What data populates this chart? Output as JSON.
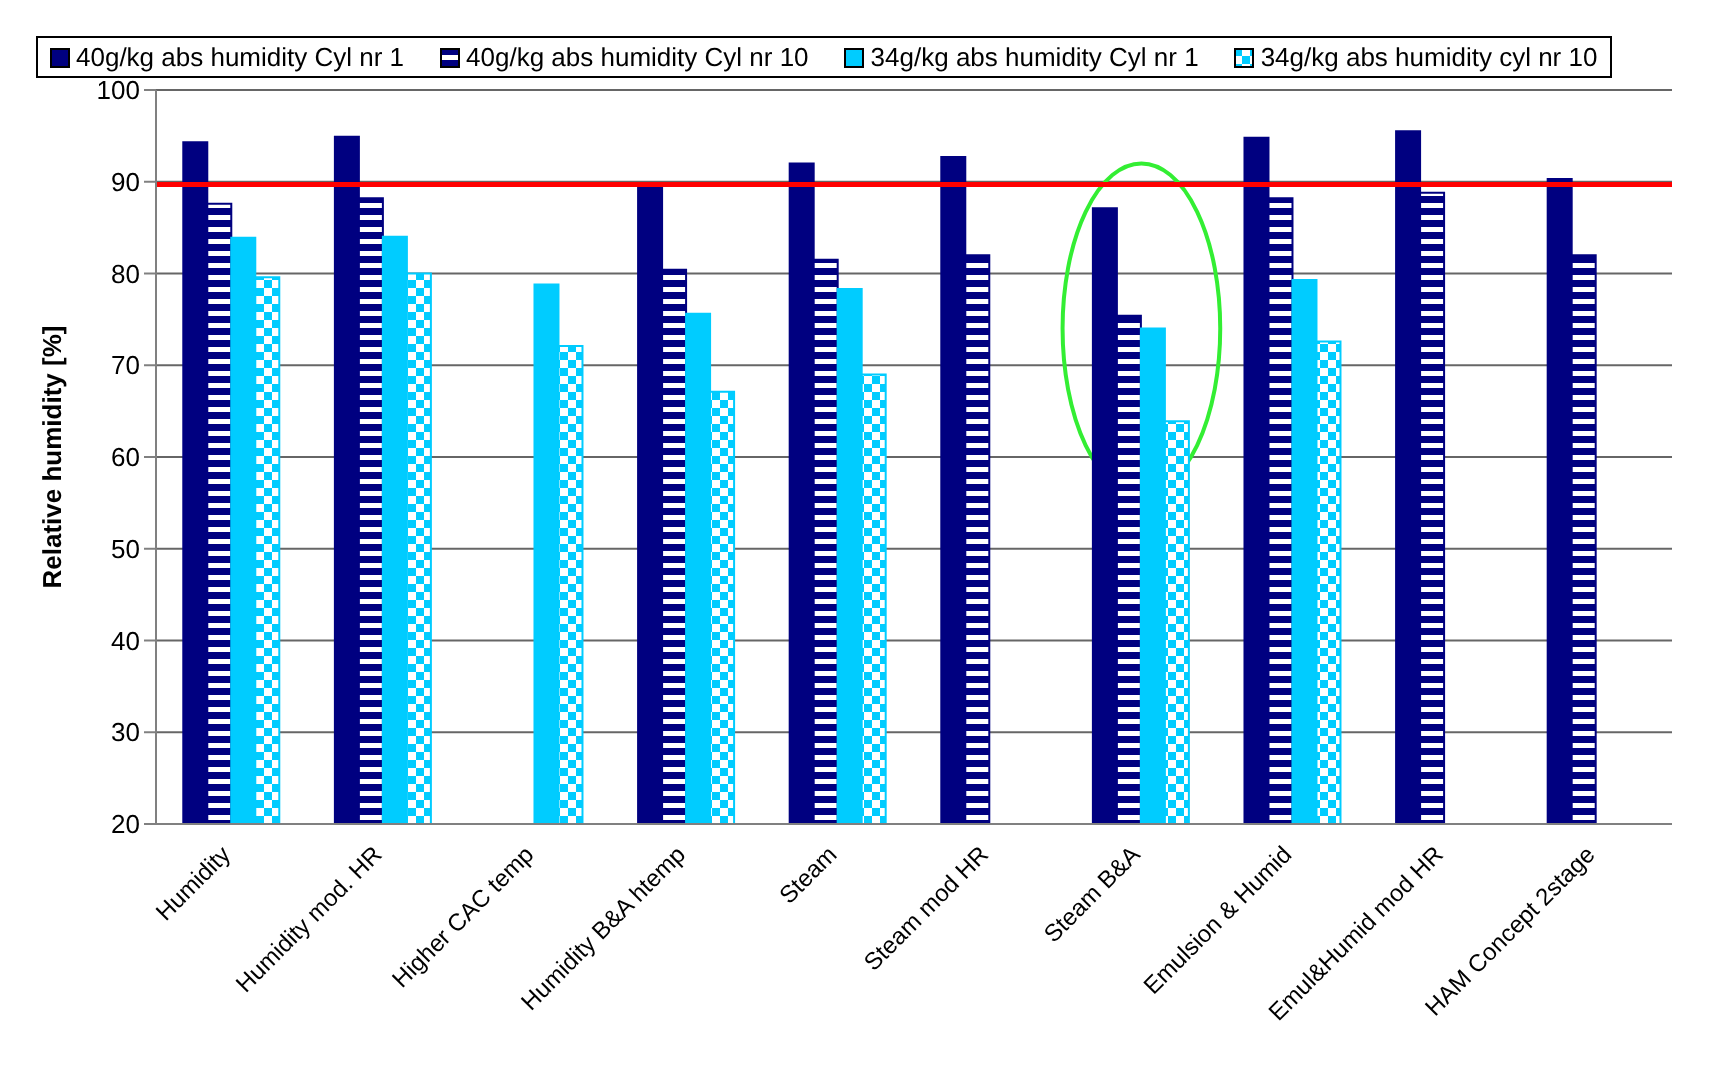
{
  "chart_data": {
    "type": "bar",
    "ylabel": "Relative humidity [%]",
    "categories": [
      "Humidity",
      "Humidity mod. HR",
      "Higher CAC temp",
      "Humidity B&A htemp",
      "Steam",
      "Steam mod HR",
      "Steam B&A",
      "Emulsion & Humid",
      "Emul&Humid mod HR",
      "HAM Concept 2stage"
    ],
    "series": [
      {
        "name": "40g/kg abs humidity Cyl nr 1",
        "color": "#000080",
        "values": [
          94.3,
          94.9,
          null,
          89.6,
          92.0,
          92.7,
          87.1,
          94.8,
          95.5,
          90.3
        ]
      },
      {
        "name": "40g/kg abs humidity Cyl nr 10",
        "color": "#000080",
        "values": [
          87.6,
          88.2,
          null,
          80.4,
          81.5,
          82.0,
          75.4,
          88.2,
          88.8,
          82.0
        ]
      },
      {
        "name": "34g/kg abs humidity Cyl nr 1",
        "color": "#00ccff",
        "values": [
          83.9,
          84.0,
          78.8,
          75.6,
          78.3,
          null,
          74.0,
          79.3,
          null,
          null
        ]
      },
      {
        "name": "34g/kg abs humidity cyl nr 10",
        "color": "#00ccff",
        "values": [
          79.6,
          80.0,
          72.1,
          67.1,
          69.0,
          null,
          63.9,
          72.6,
          null,
          null
        ]
      }
    ],
    "ylim": [
      20,
      100
    ],
    "yticks": [
      20,
      30,
      40,
      50,
      60,
      70,
      80,
      90,
      100
    ],
    "grid": "y",
    "legend": "top",
    "ref_lines": [
      {
        "axis": "y",
        "value": 89.7,
        "color": "#ff0000"
      }
    ]
  }
}
